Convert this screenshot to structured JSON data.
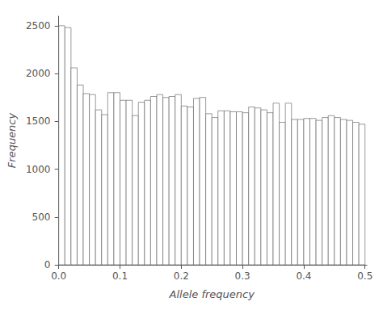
{
  "chart_data": {
    "type": "histogram",
    "xlabel": "Allele frequency",
    "ylabel": "Frequency",
    "bins": [
      0,
      0.01,
      0.02,
      0.03,
      0.04,
      0.05,
      0.06,
      0.07,
      0.08,
      0.09,
      0.1,
      0.11,
      0.12,
      0.13,
      0.14,
      0.15,
      0.16,
      0.17,
      0.18,
      0.19,
      0.2,
      0.21,
      0.22,
      0.23,
      0.24,
      0.25,
      0.26,
      0.27,
      0.28,
      0.29,
      0.3,
      0.31,
      0.32,
      0.33,
      0.34,
      0.35,
      0.36,
      0.37,
      0.38,
      0.39,
      0.4,
      0.41,
      0.42,
      0.43,
      0.44,
      0.45,
      0.46,
      0.47,
      0.48,
      0.49,
      0.5
    ],
    "values": [
      2500,
      2480,
      2060,
      1880,
      1790,
      1780,
      1620,
      1570,
      1800,
      1800,
      1720,
      1720,
      1560,
      1700,
      1720,
      1760,
      1780,
      1750,
      1760,
      1780,
      1660,
      1650,
      1740,
      1750,
      1580,
      1540,
      1610,
      1610,
      1600,
      1600,
      1590,
      1650,
      1640,
      1620,
      1590,
      1690,
      1490,
      1690,
      1520,
      1520,
      1530,
      1530,
      1510,
      1540,
      1560,
      1540,
      1520,
      1510,
      1490,
      1470
    ],
    "color": "#ffffff",
    "xlim": [
      -0.003,
      0.503
    ],
    "xticks": [
      {
        "value": 0,
        "label": "0.0"
      },
      0.1,
      0.2,
      0.3,
      0.4,
      0.5
    ],
    "ylim": [
      0,
      2600
    ],
    "yticks": [
      0,
      500,
      1000,
      1500,
      2000,
      2500
    ],
    "grid": false
  }
}
